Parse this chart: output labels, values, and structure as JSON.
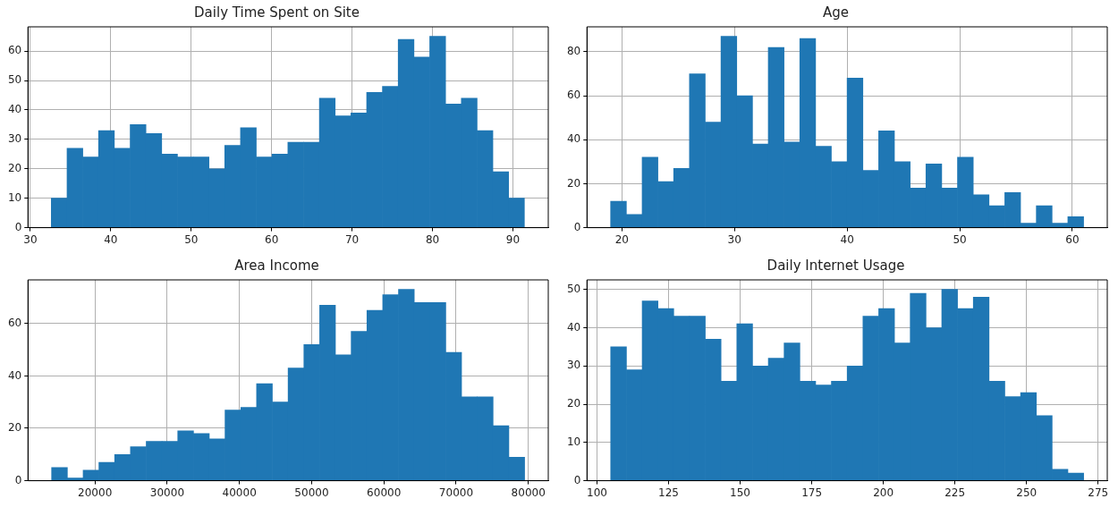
{
  "chart_data": [
    {
      "type": "histogram",
      "title": "Daily Time Spent on Site",
      "color": "#1f77b4",
      "grid": true,
      "bins": [
        32.6,
        34.56,
        36.52,
        38.48,
        40.44,
        42.41,
        44.37,
        46.33,
        48.29,
        50.25,
        52.21,
        54.17,
        56.13,
        58.09,
        60.05,
        62.02,
        63.98,
        65.94,
        67.9,
        69.86,
        71.82,
        73.78,
        75.74,
        77.7,
        79.66,
        81.63,
        83.59,
        85.55,
        87.51,
        89.47,
        91.43
      ],
      "values": [
        10,
        27,
        24,
        33,
        27,
        35,
        32,
        25,
        24,
        24,
        20,
        28,
        34,
        24,
        25,
        29,
        29,
        44,
        38,
        39,
        46,
        48,
        64,
        58,
        65,
        42,
        44,
        33,
        19,
        10
      ],
      "xlim": [
        29.7,
        94.4
      ],
      "ylim": [
        0,
        68.25
      ],
      "xticks": [
        30,
        40,
        50,
        60,
        70,
        80,
        90
      ],
      "yticks": [
        0,
        10,
        20,
        30,
        40,
        50,
        60
      ]
    },
    {
      "type": "histogram",
      "title": "Age",
      "color": "#1f77b4",
      "grid": true,
      "bins": [
        19,
        20.4,
        21.8,
        23.2,
        24.6,
        26,
        27.4,
        28.8,
        30.2,
        31.6,
        33,
        34.4,
        35.8,
        37.2,
        38.6,
        40,
        41.4,
        42.8,
        44.2,
        45.6,
        47,
        48.4,
        49.8,
        51.2,
        52.6,
        54,
        55.4,
        56.8,
        58.2,
        59.6,
        61
      ],
      "values": [
        12,
        6,
        32,
        21,
        27,
        70,
        48,
        87,
        60,
        38,
        82,
        39,
        86,
        37,
        30,
        68,
        26,
        44,
        30,
        18,
        29,
        18,
        32,
        15,
        10,
        16,
        2,
        10,
        2,
        5
      ],
      "xlim": [
        16.9,
        63.1
      ],
      "ylim": [
        0,
        91.35
      ],
      "xticks": [
        20,
        30,
        40,
        50,
        60
      ],
      "yticks": [
        0,
        20,
        40,
        60,
        80
      ]
    },
    {
      "type": "histogram",
      "title": "Area Income",
      "color": "#1f77b4",
      "grid": true,
      "bins": [
        13996,
        16179,
        18362,
        20545,
        22728,
        24911,
        27094,
        29277,
        31460,
        33643,
        35826,
        38009,
        40192,
        42375,
        44558,
        46741,
        48924,
        51107,
        53290,
        55473,
        57656,
        59839,
        62022,
        64205,
        66388,
        68571,
        70754,
        72937,
        75120,
        77303,
        79486
      ],
      "values": [
        5,
        1,
        4,
        7,
        10,
        13,
        15,
        15,
        19,
        18,
        16,
        27,
        28,
        37,
        30,
        43,
        52,
        67,
        48,
        57,
        65,
        71,
        73,
        68,
        68,
        49,
        32,
        32,
        21,
        9
      ],
      "xlim": [
        10722,
        82760
      ],
      "ylim": [
        0,
        76.65
      ],
      "xticks": [
        20000,
        30000,
        40000,
        50000,
        60000,
        70000,
        80000
      ],
      "yticks": [
        0,
        20,
        40,
        60
      ]
    },
    {
      "type": "histogram",
      "title": "Daily Internet Usage",
      "color": "#1f77b4",
      "grid": true,
      "bins": [
        104.78,
        110.29,
        115.79,
        121.3,
        126.8,
        132.31,
        137.82,
        143.32,
        148.83,
        154.33,
        159.84,
        165.35,
        170.85,
        176.36,
        181.86,
        187.37,
        192.88,
        198.38,
        203.89,
        209.39,
        214.9,
        220.41,
        225.91,
        231.42,
        236.92,
        242.43,
        247.94,
        253.44,
        258.95,
        264.45,
        269.96
      ],
      "values": [
        35,
        29,
        47,
        45,
        43,
        43,
        37,
        26,
        41,
        30,
        32,
        36,
        26,
        25,
        26,
        30,
        43,
        45,
        36,
        49,
        40,
        50,
        45,
        48,
        26,
        22,
        23,
        17,
        3,
        2
      ],
      "xlim": [
        96.5,
        278.2
      ],
      "ylim": [
        0,
        52.5
      ],
      "xticks": [
        100,
        125,
        150,
        175,
        200,
        225,
        250,
        275
      ],
      "yticks": [
        0,
        10,
        20,
        30,
        40,
        50
      ]
    }
  ]
}
